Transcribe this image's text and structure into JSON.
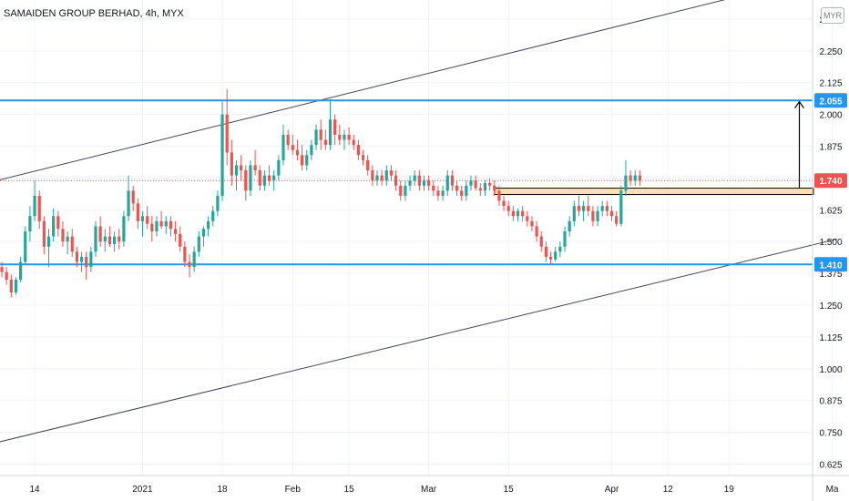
{
  "header": {
    "title": "SAMAIDEN GROUP BERHAD, 4h, MYX",
    "currency": "MYR"
  },
  "colors": {
    "up": "#26a69a",
    "down": "#ef5350",
    "level_line": "#2196f3",
    "trend_line": "#434651",
    "zone_fill": "#ffe0b2",
    "grid": "#f0f3fa"
  },
  "chart_data": {
    "type": "candlestick",
    "title": "SAMAIDEN GROUP BERHAD, 4h, MYX",
    "xlabel": "",
    "ylabel": "",
    "ylim": [
      0.58,
      2.45
    ],
    "grid": true,
    "y_ticks": [
      "0.625",
      "0.750",
      "0.875",
      "1.000",
      "1.125",
      "1.250",
      "1.375",
      "1.500",
      "1.625",
      "1.750",
      "1.875",
      "2.000",
      "2.125",
      "2.250",
      "2.375"
    ],
    "x_ticks": [
      {
        "label": "14",
        "index": 7
      },
      {
        "label": "2021",
        "index": 30
      },
      {
        "label": "18",
        "index": 47
      },
      {
        "label": "Feb",
        "index": 62
      },
      {
        "label": "15",
        "index": 74
      },
      {
        "label": "Mar",
        "index": 91
      },
      {
        "label": "15",
        "index": 108
      },
      {
        "label": "Apr",
        "index": 130
      },
      {
        "label": "12",
        "index": 142
      },
      {
        "label": "19",
        "index": 155
      },
      {
        "label": "Ma",
        "index": 177
      }
    ],
    "level_lines": [
      {
        "label": "2.055",
        "value": 2.055
      },
      {
        "label": "1.410",
        "value": 1.41
      }
    ],
    "last_price": {
      "label": "1.740",
      "value": 1.74
    },
    "zone": {
      "top": 1.71,
      "bottom": 1.685,
      "start_index": 105,
      "end_index": 173
    },
    "target_arrow": {
      "index": 170,
      "from": 1.71,
      "to": 2.05
    },
    "channel_upper": {
      "from": [
        -1,
        1.74
      ],
      "to": [
        156,
        2.46
      ]
    },
    "channel_lower": {
      "from": [
        -1,
        0.71
      ],
      "to": [
        178,
        1.51
      ]
    },
    "candles": [
      [
        1.4,
        1.42,
        1.36,
        1.38
      ],
      [
        1.38,
        1.4,
        1.33,
        1.35
      ],
      [
        1.35,
        1.37,
        1.28,
        1.3
      ],
      [
        1.3,
        1.36,
        1.29,
        1.35
      ],
      [
        1.35,
        1.44,
        1.34,
        1.42
      ],
      [
        1.42,
        1.56,
        1.41,
        1.54
      ],
      [
        1.54,
        1.64,
        1.5,
        1.6
      ],
      [
        1.6,
        1.74,
        1.58,
        1.68
      ],
      [
        1.68,
        1.7,
        1.55,
        1.58
      ],
      [
        1.58,
        1.6,
        1.45,
        1.48
      ],
      [
        1.48,
        1.55,
        1.4,
        1.52
      ],
      [
        1.52,
        1.63,
        1.5,
        1.6
      ],
      [
        1.6,
        1.62,
        1.52,
        1.55
      ],
      [
        1.55,
        1.58,
        1.48,
        1.5
      ],
      [
        1.5,
        1.54,
        1.45,
        1.52
      ],
      [
        1.52,
        1.55,
        1.44,
        1.46
      ],
      [
        1.46,
        1.48,
        1.4,
        1.42
      ],
      [
        1.42,
        1.46,
        1.38,
        1.44
      ],
      [
        1.44,
        1.46,
        1.35,
        1.4
      ],
      [
        1.4,
        1.48,
        1.38,
        1.46
      ],
      [
        1.46,
        1.58,
        1.44,
        1.56
      ],
      [
        1.56,
        1.6,
        1.48,
        1.5
      ],
      [
        1.5,
        1.55,
        1.46,
        1.52
      ],
      [
        1.52,
        1.56,
        1.48,
        1.49
      ],
      [
        1.49,
        1.54,
        1.46,
        1.52
      ],
      [
        1.52,
        1.55,
        1.47,
        1.5
      ],
      [
        1.5,
        1.62,
        1.48,
        1.6
      ],
      [
        1.6,
        1.76,
        1.58,
        1.7
      ],
      [
        1.7,
        1.72,
        1.62,
        1.65
      ],
      [
        1.65,
        1.67,
        1.55,
        1.58
      ],
      [
        1.58,
        1.62,
        1.52,
        1.6
      ],
      [
        1.6,
        1.64,
        1.55,
        1.57
      ],
      [
        1.57,
        1.6,
        1.5,
        1.54
      ],
      [
        1.54,
        1.6,
        1.52,
        1.58
      ],
      [
        1.58,
        1.62,
        1.55,
        1.56
      ],
      [
        1.56,
        1.6,
        1.53,
        1.58
      ],
      [
        1.58,
        1.6,
        1.52,
        1.55
      ],
      [
        1.55,
        1.58,
        1.5,
        1.53
      ],
      [
        1.53,
        1.56,
        1.46,
        1.48
      ],
      [
        1.48,
        1.5,
        1.4,
        1.42
      ],
      [
        1.42,
        1.45,
        1.36,
        1.4
      ],
      [
        1.4,
        1.48,
        1.38,
        1.46
      ],
      [
        1.46,
        1.54,
        1.44,
        1.52
      ],
      [
        1.52,
        1.56,
        1.48,
        1.55
      ],
      [
        1.55,
        1.6,
        1.52,
        1.58
      ],
      [
        1.58,
        1.64,
        1.56,
        1.62
      ],
      [
        1.62,
        1.7,
        1.6,
        1.68
      ],
      [
        1.68,
        2.05,
        1.66,
        2.0
      ],
      [
        2.0,
        2.1,
        1.8,
        1.85
      ],
      [
        1.85,
        1.9,
        1.72,
        1.76
      ],
      [
        1.76,
        1.82,
        1.7,
        1.8
      ],
      [
        1.8,
        1.84,
        1.74,
        1.78
      ],
      [
        1.78,
        1.8,
        1.66,
        1.7
      ],
      [
        1.7,
        1.82,
        1.68,
        1.8
      ],
      [
        1.8,
        1.86,
        1.76,
        1.78
      ],
      [
        1.78,
        1.8,
        1.7,
        1.72
      ],
      [
        1.72,
        1.78,
        1.7,
        1.76
      ],
      [
        1.76,
        1.8,
        1.72,
        1.74
      ],
      [
        1.74,
        1.78,
        1.7,
        1.76
      ],
      [
        1.76,
        1.84,
        1.74,
        1.82
      ],
      [
        1.82,
        1.96,
        1.8,
        1.92
      ],
      [
        1.92,
        1.94,
        1.86,
        1.88
      ],
      [
        1.88,
        1.92,
        1.84,
        1.86
      ],
      [
        1.86,
        1.9,
        1.82,
        1.84
      ],
      [
        1.84,
        1.88,
        1.78,
        1.8
      ],
      [
        1.8,
        1.86,
        1.78,
        1.84
      ],
      [
        1.84,
        1.9,
        1.82,
        1.88
      ],
      [
        1.88,
        1.96,
        1.86,
        1.94
      ],
      [
        1.94,
        1.98,
        1.86,
        1.9
      ],
      [
        1.9,
        1.94,
        1.86,
        1.88
      ],
      [
        1.88,
        2.06,
        1.86,
        1.98
      ],
      [
        1.98,
        2.0,
        1.88,
        1.92
      ],
      [
        1.92,
        1.96,
        1.88,
        1.9
      ],
      [
        1.9,
        1.94,
        1.86,
        1.92
      ],
      [
        1.92,
        1.95,
        1.88,
        1.9
      ],
      [
        1.9,
        1.92,
        1.86,
        1.88
      ],
      [
        1.88,
        1.9,
        1.82,
        1.84
      ],
      [
        1.84,
        1.86,
        1.8,
        1.82
      ],
      [
        1.82,
        1.84,
        1.76,
        1.78
      ],
      [
        1.78,
        1.8,
        1.72,
        1.74
      ],
      [
        1.74,
        1.78,
        1.72,
        1.76
      ],
      [
        1.76,
        1.78,
        1.72,
        1.74
      ],
      [
        1.74,
        1.8,
        1.72,
        1.78
      ],
      [
        1.78,
        1.8,
        1.74,
        1.76
      ],
      [
        1.76,
        1.78,
        1.7,
        1.72
      ],
      [
        1.72,
        1.74,
        1.66,
        1.68
      ],
      [
        1.68,
        1.74,
        1.66,
        1.72
      ],
      [
        1.72,
        1.76,
        1.7,
        1.74
      ],
      [
        1.74,
        1.78,
        1.72,
        1.76
      ],
      [
        1.76,
        1.78,
        1.7,
        1.72
      ],
      [
        1.72,
        1.76,
        1.7,
        1.74
      ],
      [
        1.74,
        1.76,
        1.7,
        1.72
      ],
      [
        1.72,
        1.74,
        1.68,
        1.7
      ],
      [
        1.7,
        1.72,
        1.66,
        1.68
      ],
      [
        1.68,
        1.72,
        1.66,
        1.7
      ],
      [
        1.7,
        1.78,
        1.68,
        1.76
      ],
      [
        1.76,
        1.78,
        1.7,
        1.72
      ],
      [
        1.72,
        1.74,
        1.68,
        1.7
      ],
      [
        1.7,
        1.72,
        1.66,
        1.68
      ],
      [
        1.68,
        1.74,
        1.66,
        1.72
      ],
      [
        1.72,
        1.76,
        1.7,
        1.74
      ],
      [
        1.74,
        1.76,
        1.7,
        1.71
      ],
      [
        1.71,
        1.73,
        1.68,
        1.7
      ],
      [
        1.7,
        1.74,
        1.68,
        1.73
      ],
      [
        1.73,
        1.75,
        1.7,
        1.72
      ],
      [
        1.72,
        1.74,
        1.68,
        1.7
      ],
      [
        1.7,
        1.72,
        1.64,
        1.66
      ],
      [
        1.66,
        1.68,
        1.62,
        1.64
      ],
      [
        1.64,
        1.66,
        1.6,
        1.62
      ],
      [
        1.62,
        1.64,
        1.58,
        1.6
      ],
      [
        1.6,
        1.63,
        1.58,
        1.62
      ],
      [
        1.62,
        1.64,
        1.58,
        1.6
      ],
      [
        1.6,
        1.62,
        1.56,
        1.58
      ],
      [
        1.58,
        1.6,
        1.54,
        1.56
      ],
      [
        1.56,
        1.58,
        1.5,
        1.52
      ],
      [
        1.52,
        1.54,
        1.46,
        1.48
      ],
      [
        1.48,
        1.5,
        1.42,
        1.44
      ],
      [
        1.44,
        1.46,
        1.41,
        1.43
      ],
      [
        1.43,
        1.48,
        1.42,
        1.46
      ],
      [
        1.46,
        1.5,
        1.44,
        1.48
      ],
      [
        1.48,
        1.56,
        1.46,
        1.54
      ],
      [
        1.54,
        1.6,
        1.52,
        1.58
      ],
      [
        1.58,
        1.66,
        1.56,
        1.64
      ],
      [
        1.64,
        1.68,
        1.6,
        1.62
      ],
      [
        1.62,
        1.66,
        1.58,
        1.64
      ],
      [
        1.64,
        1.68,
        1.6,
        1.62
      ],
      [
        1.62,
        1.64,
        1.56,
        1.58
      ],
      [
        1.58,
        1.64,
        1.56,
        1.62
      ],
      [
        1.62,
        1.66,
        1.6,
        1.64
      ],
      [
        1.64,
        1.66,
        1.6,
        1.62
      ],
      [
        1.62,
        1.64,
        1.58,
        1.6
      ],
      [
        1.6,
        1.62,
        1.56,
        1.57
      ],
      [
        1.57,
        1.72,
        1.56,
        1.7
      ],
      [
        1.7,
        1.82,
        1.68,
        1.76
      ],
      [
        1.76,
        1.78,
        1.72,
        1.74
      ],
      [
        1.74,
        1.78,
        1.72,
        1.76
      ],
      [
        1.76,
        1.78,
        1.72,
        1.74
      ]
    ]
  }
}
